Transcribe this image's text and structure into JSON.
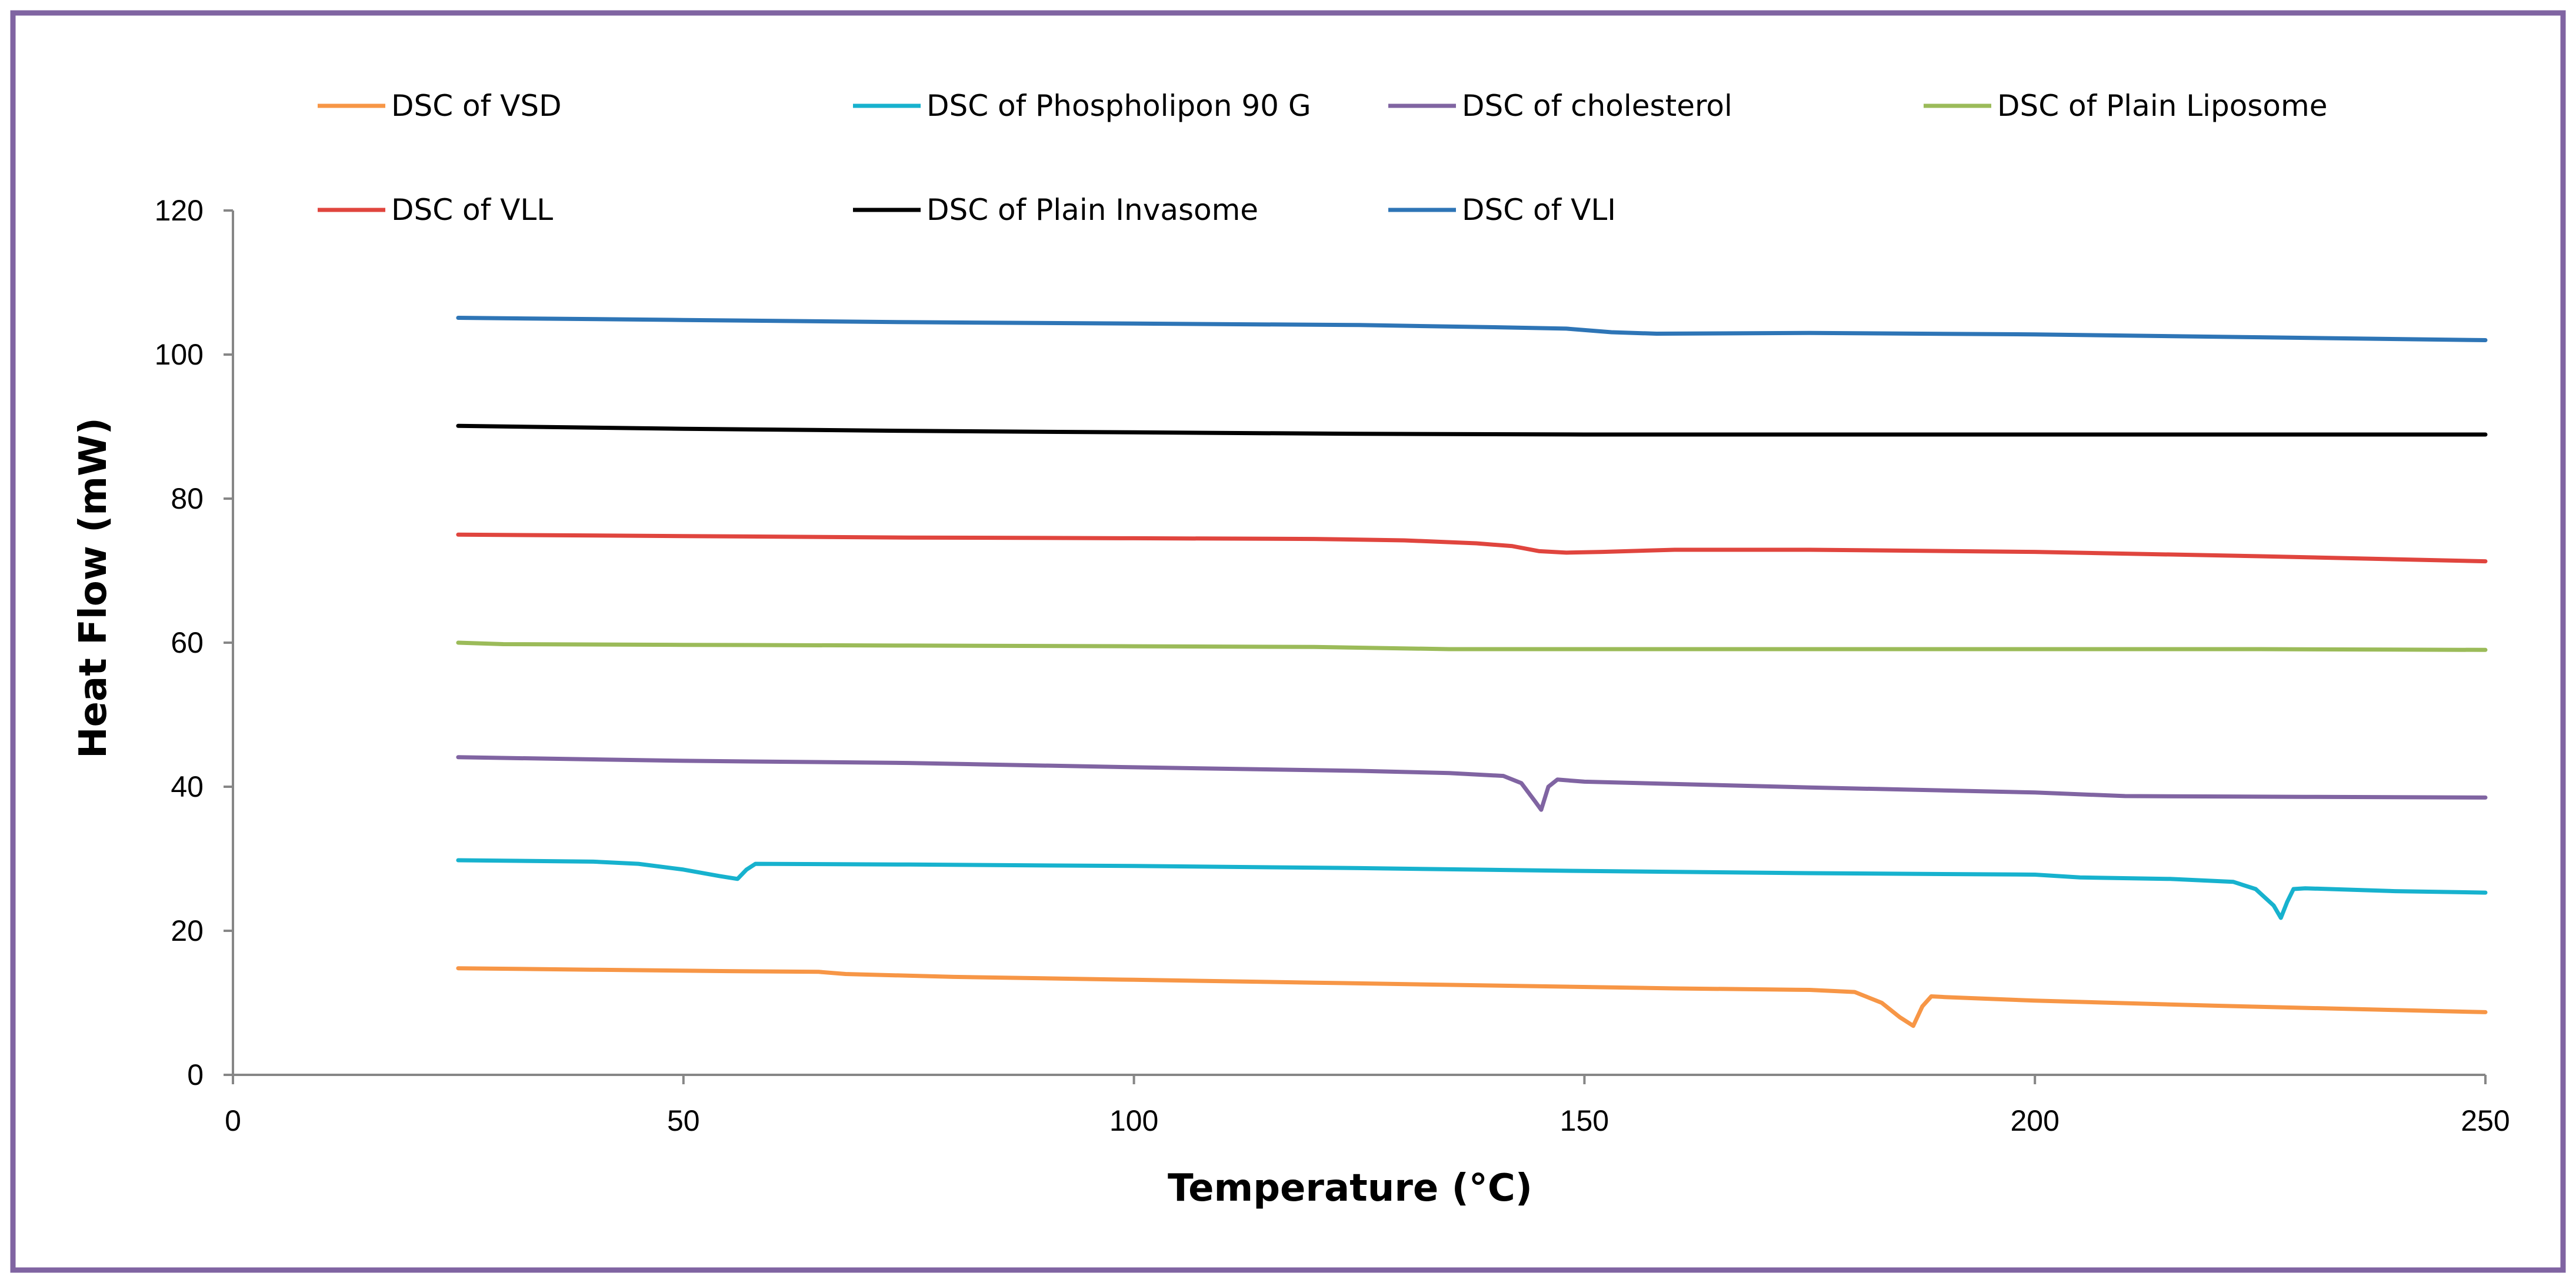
{
  "chart_data": {
    "type": "line",
    "title": "",
    "xlabel": "Temperature  (°C)",
    "ylabel": "Heat Flow  (mW)",
    "xlim": [
      0,
      250
    ],
    "ylim": [
      0,
      120
    ],
    "xticks": [
      0,
      50,
      100,
      150,
      200,
      250
    ],
    "yticks": [
      0,
      20,
      40,
      60,
      80,
      100,
      120
    ],
    "grid": false,
    "legend_position": "top",
    "series": [
      {
        "name": "DSC of VSD",
        "color": "#F79646",
        "points": [
          [
            25,
            14.8
          ],
          [
            40,
            14.6
          ],
          [
            55,
            14.4
          ],
          [
            65,
            14.3
          ],
          [
            68,
            14.0
          ],
          [
            80,
            13.6
          ],
          [
            100,
            13.2
          ],
          [
            120,
            12.8
          ],
          [
            140,
            12.4
          ],
          [
            160,
            12.0
          ],
          [
            175,
            11.8
          ],
          [
            180,
            11.5
          ],
          [
            183,
            10.0
          ],
          [
            185,
            8.0
          ],
          [
            186.5,
            6.8
          ],
          [
            187.5,
            9.5
          ],
          [
            188.5,
            10.9
          ],
          [
            190,
            10.8
          ],
          [
            200,
            10.3
          ],
          [
            220,
            9.6
          ],
          [
            240,
            9.0
          ],
          [
            250,
            8.7
          ]
        ]
      },
      {
        "name": "DSC of Phospholipon 90 G",
        "color": "#17B2CE",
        "points": [
          [
            25,
            29.8
          ],
          [
            40,
            29.6
          ],
          [
            45,
            29.3
          ],
          [
            50,
            28.5
          ],
          [
            54,
            27.6
          ],
          [
            56,
            27.2
          ],
          [
            57,
            28.5
          ],
          [
            58,
            29.3
          ],
          [
            75,
            29.2
          ],
          [
            100,
            29.0
          ],
          [
            125,
            28.7
          ],
          [
            150,
            28.3
          ],
          [
            175,
            28.0
          ],
          [
            200,
            27.8
          ],
          [
            205,
            27.4
          ],
          [
            215,
            27.2
          ],
          [
            222,
            26.8
          ],
          [
            224.5,
            25.8
          ],
          [
            226.5,
            23.5
          ],
          [
            227.3,
            21.8
          ],
          [
            228,
            24.0
          ],
          [
            228.7,
            25.8
          ],
          [
            230,
            25.9
          ],
          [
            240,
            25.5
          ],
          [
            250,
            25.3
          ]
        ]
      },
      {
        "name": "DSC of cholesterol",
        "color": "#8064A2",
        "points": [
          [
            25,
            44.1
          ],
          [
            50,
            43.6
          ],
          [
            75,
            43.3
          ],
          [
            100,
            42.7
          ],
          [
            125,
            42.2
          ],
          [
            135,
            41.9
          ],
          [
            141,
            41.5
          ],
          [
            143,
            40.5
          ],
          [
            144.5,
            38.0
          ],
          [
            145.2,
            36.8
          ],
          [
            146,
            40.0
          ],
          [
            147,
            41.0
          ],
          [
            150,
            40.7
          ],
          [
            175,
            39.9
          ],
          [
            200,
            39.2
          ],
          [
            210,
            38.7
          ],
          [
            230,
            38.6
          ],
          [
            250,
            38.5
          ]
        ]
      },
      {
        "name": "DSC of Plain Liposome",
        "color": "#9BBB59",
        "points": [
          [
            25,
            60.0
          ],
          [
            30,
            59.8
          ],
          [
            50,
            59.7
          ],
          [
            75,
            59.6
          ],
          [
            100,
            59.5
          ],
          [
            120,
            59.4
          ],
          [
            135,
            59.1
          ],
          [
            150,
            59.1
          ],
          [
            175,
            59.1
          ],
          [
            200,
            59.1
          ],
          [
            225,
            59.1
          ],
          [
            250,
            59.0
          ]
        ]
      },
      {
        "name": "DSC of VLL",
        "color": "#E0453E",
        "points": [
          [
            25,
            75.0
          ],
          [
            50,
            74.8
          ],
          [
            75,
            74.6
          ],
          [
            100,
            74.5
          ],
          [
            120,
            74.4
          ],
          [
            130,
            74.2
          ],
          [
            138,
            73.8
          ],
          [
            142,
            73.4
          ],
          [
            145,
            72.7
          ],
          [
            148,
            72.5
          ],
          [
            152,
            72.6
          ],
          [
            160,
            72.9
          ],
          [
            175,
            72.9
          ],
          [
            200,
            72.6
          ],
          [
            225,
            72.0
          ],
          [
            250,
            71.3
          ]
        ]
      },
      {
        "name": "DSC of Plain Invasome",
        "color": "#000000",
        "points": [
          [
            25,
            90.1
          ],
          [
            50,
            89.7
          ],
          [
            75,
            89.4
          ],
          [
            100,
            89.2
          ],
          [
            125,
            89.0
          ],
          [
            150,
            88.9
          ],
          [
            175,
            88.9
          ],
          [
            200,
            88.9
          ],
          [
            225,
            88.9
          ],
          [
            250,
            88.9
          ]
        ]
      },
      {
        "name": "DSC of VLI",
        "color": "#2E75B6",
        "points": [
          [
            25,
            105.1
          ],
          [
            50,
            104.8
          ],
          [
            75,
            104.5
          ],
          [
            100,
            104.3
          ],
          [
            125,
            104.1
          ],
          [
            140,
            103.8
          ],
          [
            148,
            103.6
          ],
          [
            153,
            103.1
          ],
          [
            158,
            102.9
          ],
          [
            175,
            103.0
          ],
          [
            200,
            102.8
          ],
          [
            225,
            102.4
          ],
          [
            250,
            102.0
          ]
        ]
      }
    ]
  },
  "frame_color": "#8064A2"
}
